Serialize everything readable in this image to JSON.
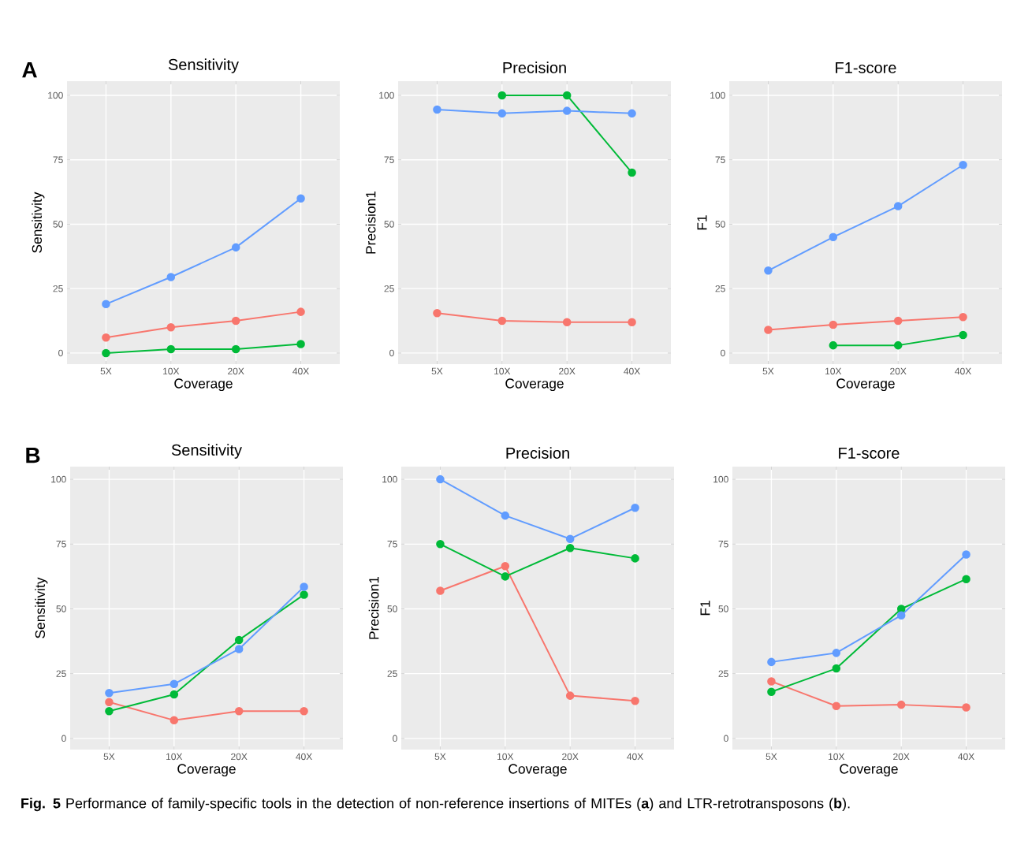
{
  "chart_data": [
    {
      "type": "line",
      "title": "Sensitivity",
      "xlabel": "Coverage",
      "ylabel": "Sensitivity",
      "categories": [
        "5X",
        "10X",
        "20X",
        "40X"
      ],
      "ylim": [
        -4.3,
        105.5
      ],
      "yticks": [
        0,
        25,
        50,
        75,
        100
      ],
      "grid": true,
      "marker": "circle",
      "line_style": "solid",
      "annotations": [
        "A"
      ],
      "series": [
        {
          "color": "#f8766d",
          "values": [
            6,
            10,
            12.5,
            16
          ]
        },
        {
          "color": "#00ba38",
          "values": [
            0,
            1.5,
            1.5,
            3.5
          ]
        },
        {
          "color": "#619cff",
          "values": [
            19,
            29.5,
            41,
            60
          ]
        }
      ]
    },
    {
      "type": "line",
      "title": "Precision",
      "xlabel": "Coverage",
      "ylabel": "Precision1",
      "categories": [
        "5X",
        "10X",
        "20X",
        "40X"
      ],
      "ylim": [
        -4.3,
        105.5
      ],
      "yticks": [
        0,
        25,
        50,
        75,
        100
      ],
      "grid": true,
      "marker": "circle",
      "line_style": "solid",
      "series": [
        {
          "color": "#f8766d",
          "values": [
            15.5,
            12.5,
            12,
            12
          ]
        },
        {
          "color": "#00ba38",
          "values": [
            null,
            100,
            100,
            70
          ]
        },
        {
          "color": "#619cff",
          "values": [
            94.5,
            93,
            94,
            93
          ]
        }
      ]
    },
    {
      "type": "line",
      "title": "F1-score",
      "xlabel": "Coverage",
      "ylabel": "F1",
      "categories": [
        "5X",
        "10X",
        "20X",
        "40X"
      ],
      "ylim": [
        -4.3,
        105.5
      ],
      "yticks": [
        0,
        25,
        50,
        75,
        100
      ],
      "grid": true,
      "marker": "circle",
      "line_style": "solid",
      "series": [
        {
          "color": "#f8766d",
          "values": [
            9,
            11,
            12.5,
            14
          ]
        },
        {
          "color": "#00ba38",
          "values": [
            null,
            3,
            3,
            7
          ]
        },
        {
          "color": "#619cff",
          "values": [
            32,
            45,
            57,
            73
          ]
        }
      ]
    },
    {
      "type": "line",
      "title": "Sensitivity",
      "xlabel": "Coverage",
      "ylabel": "Sensitivity",
      "categories": [
        "5X",
        "10X",
        "20X",
        "40X"
      ],
      "ylim": [
        -4.3,
        104.9
      ],
      "yticks": [
        0,
        25,
        50,
        75,
        100
      ],
      "grid": true,
      "marker": "circle",
      "line_style": "solid",
      "annotations": [
        "B",
        "**Fig. 5** Performance of family-specific tools in the detection of non-reference insertions of MITEs (**a**) and LTR-retrotransposons (**b**)."
      ],
      "series": [
        {
          "color": "#f8766d",
          "values": [
            14,
            7,
            10.5,
            10.5
          ]
        },
        {
          "color": "#00ba38",
          "values": [
            10.5,
            17,
            38,
            55.5
          ]
        },
        {
          "color": "#619cff",
          "values": [
            17.5,
            21,
            34.5,
            58.5
          ]
        }
      ]
    },
    {
      "type": "line",
      "title": "Precision",
      "xlabel": "Coverage",
      "ylabel": "Precision1",
      "categories": [
        "5X",
        "10X",
        "20X",
        "40X"
      ],
      "ylim": [
        -4.3,
        104.9
      ],
      "yticks": [
        0,
        25,
        50,
        75,
        100
      ],
      "grid": true,
      "marker": "circle",
      "line_style": "solid",
      "series": [
        {
          "color": "#f8766d",
          "values": [
            57,
            66.5,
            16.5,
            14.5
          ]
        },
        {
          "color": "#00ba38",
          "values": [
            75,
            62.5,
            73.5,
            69.5
          ]
        },
        {
          "color": "#619cff",
          "values": [
            100,
            86,
            77,
            89
          ]
        }
      ]
    },
    {
      "type": "line",
      "title": "F1-score",
      "xlabel": "Coverage",
      "ylabel": "F1",
      "categories": [
        "5X",
        "10X",
        "20X",
        "40X"
      ],
      "ylim": [
        -4.3,
        104.9
      ],
      "yticks": [
        0,
        25,
        50,
        75,
        100
      ],
      "grid": true,
      "marker": "circle",
      "line_style": "solid",
      "series": [
        {
          "color": "#f8766d",
          "values": [
            22,
            12.5,
            13,
            12
          ]
        },
        {
          "color": "#00ba38",
          "values": [
            18,
            27,
            50,
            61.5
          ]
        },
        {
          "color": "#619cff",
          "values": [
            29.5,
            33,
            47.5,
            71
          ]
        }
      ]
    }
  ]
}
